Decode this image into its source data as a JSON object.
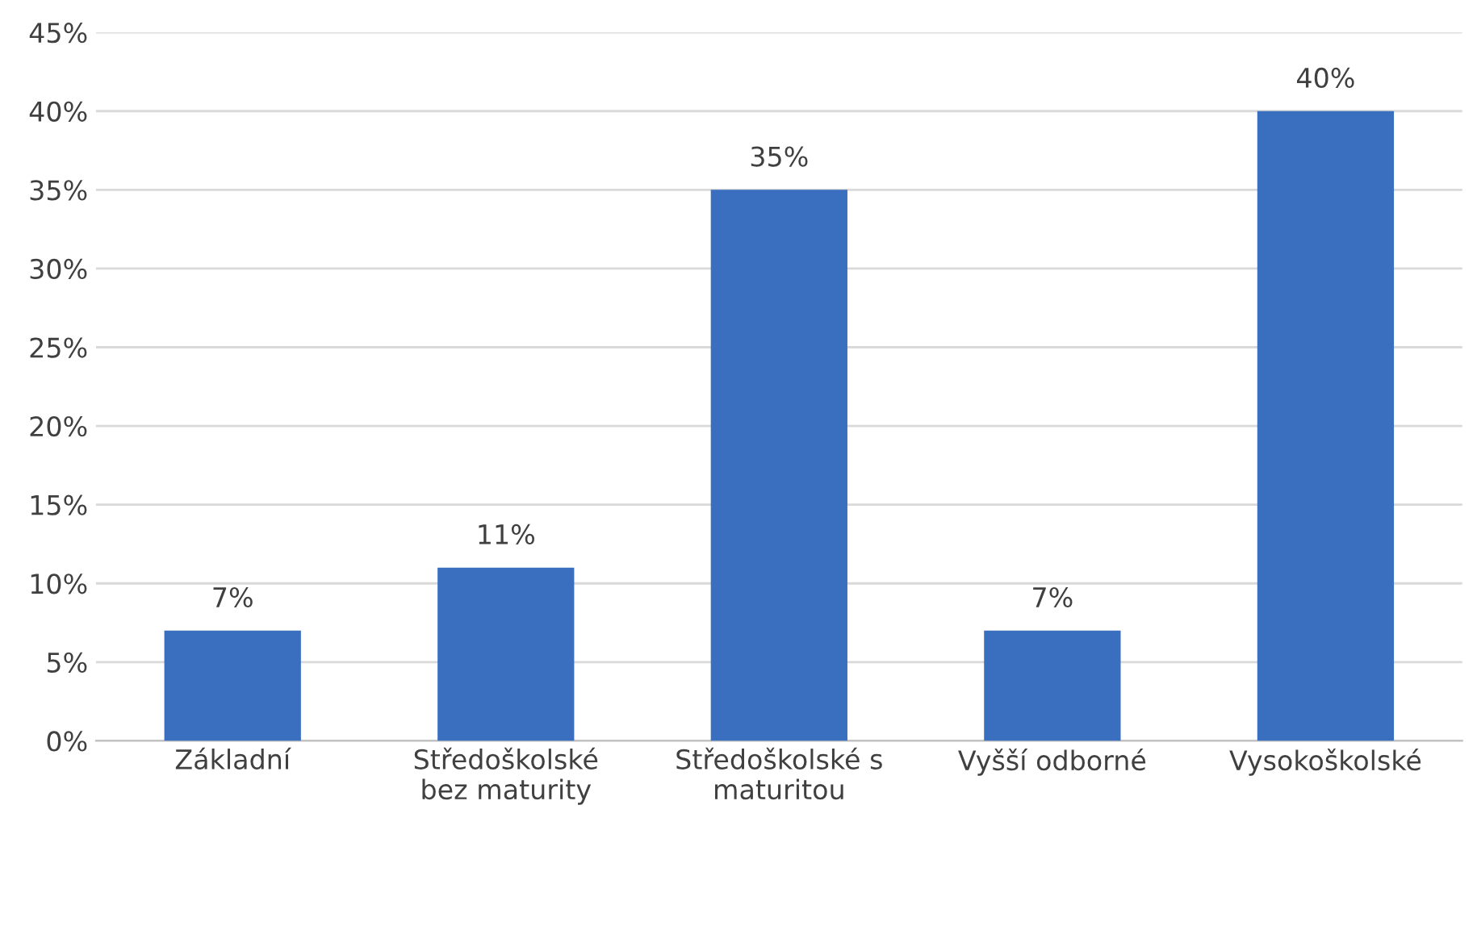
{
  "chart_data": {
    "type": "bar",
    "categories": [
      "Základní",
      "Středoškolské\nbez maturity",
      "Středoškolské s\nmaturitou",
      "Vyšší odborné",
      "Vysokoškolské"
    ],
    "values": [
      7,
      11,
      35,
      7,
      40
    ],
    "value_labels": [
      "7%",
      "11%",
      "35%",
      "7%",
      "40%"
    ],
    "color": "#3a6fc0",
    "ylim": [
      0,
      45
    ],
    "yticks": [
      {
        "value": 0,
        "label": "0%"
      },
      {
        "value": 5,
        "label": "5%"
      },
      {
        "value": 10,
        "label": "10%"
      },
      {
        "value": 15,
        "label": "15%"
      },
      {
        "value": 20,
        "label": "20%"
      },
      {
        "value": 25,
        "label": "25%"
      },
      {
        "value": 30,
        "label": "30%"
      },
      {
        "value": 35,
        "label": "35%"
      },
      {
        "value": 40,
        "label": "40%"
      },
      {
        "value": 45,
        "label": "45%"
      }
    ],
    "grid": "y"
  }
}
